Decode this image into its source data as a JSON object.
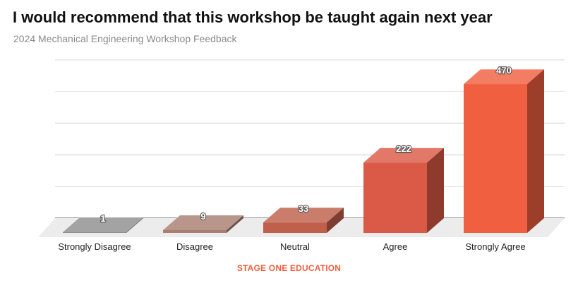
{
  "header": {
    "title": "I would recommend that this workshop be taught again next year",
    "subtitle": "2024 Mechanical Engineering Workshop Feedback"
  },
  "footer": {
    "label": "STAGE ONE EDUCATION",
    "color": "#f0603f"
  },
  "chart_data": {
    "type": "bar",
    "categories": [
      "Strongly Disagree",
      "Disagree",
      "Neutral",
      "Agree",
      "Strongly Agree"
    ],
    "series": [
      {
        "values": [
          1,
          9,
          33,
          222,
          470
        ]
      }
    ],
    "colors": [
      "#8f8f8f",
      "#a97f72",
      "#c0604c",
      "#db5a47",
      "#f06040"
    ],
    "ylim": [
      0,
      500
    ],
    "grid": true,
    "legend": "none",
    "data_labels": true,
    "style": "3d"
  }
}
